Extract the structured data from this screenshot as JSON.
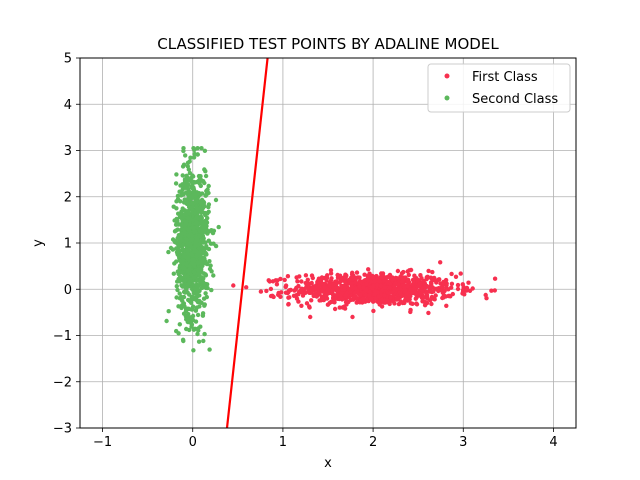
{
  "chart_data": {
    "type": "scatter",
    "title": "CLASSIFIED TEST POINTS BY ADALINE MODEL",
    "xlabel": "x",
    "ylabel": "y",
    "xlim": [
      -1.25,
      4.25
    ],
    "ylim": [
      -3,
      5
    ],
    "xticks": [
      -1,
      0,
      1,
      2,
      3,
      4
    ],
    "yticks": [
      -3,
      -2,
      -1,
      0,
      1,
      2,
      3,
      4,
      5
    ],
    "xtick_labels": [
      "−1",
      "0",
      "1",
      "2",
      "3",
      "4"
    ],
    "ytick_labels": [
      "−3",
      "−2",
      "−1",
      "0",
      "1",
      "2",
      "3",
      "4",
      "5"
    ],
    "grid": true,
    "legend_position": "top-right",
    "series": [
      {
        "name": "First Class",
        "color": "#f7304f",
        "cluster": {
          "x_mean": 2.0,
          "x_std": 0.45,
          "y_mean": 0.0,
          "y_std": 0.17,
          "count": 1000,
          "x_range": [
            0.45,
            3.9
          ],
          "y_range": [
            -0.6,
            0.6
          ]
        }
      },
      {
        "name": "Second Class",
        "color": "#5cb85c",
        "cluster": {
          "x_mean": 0.0,
          "x_std": 0.09,
          "y_mean": 1.0,
          "y_std": 0.8,
          "count": 1000,
          "x_range": [
            -0.35,
            0.35
          ],
          "y_range": [
            -1.45,
            3.05
          ]
        }
      }
    ],
    "decision_line": {
      "color": "#ff0000",
      "points": [
        [
          0.38,
          -3.0
        ],
        [
          0.83,
          5.0
        ]
      ]
    }
  }
}
